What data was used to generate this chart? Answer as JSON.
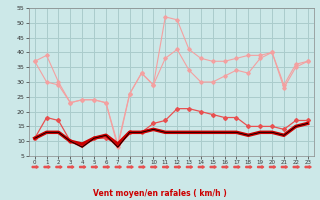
{
  "x": [
    0,
    1,
    2,
    3,
    4,
    5,
    6,
    7,
    8,
    9,
    10,
    11,
    12,
    13,
    14,
    15,
    16,
    17,
    18,
    19,
    20,
    21,
    22,
    23
  ],
  "line_max_gust": [
    37,
    39,
    30,
    23,
    24,
    24,
    23,
    8,
    26,
    33,
    29,
    52,
    51,
    41,
    38,
    37,
    37,
    38,
    39,
    39,
    40,
    29,
    36,
    37
  ],
  "line_avg_gust": [
    37,
    30,
    29,
    23,
    24,
    24,
    23,
    9,
    26,
    33,
    29,
    38,
    41,
    34,
    30,
    30,
    32,
    34,
    33,
    38,
    40,
    28,
    35,
    37
  ],
  "line_avg_wind": [
    11,
    18,
    17,
    10,
    9,
    11,
    11,
    9,
    13,
    13,
    16,
    17,
    21,
    21,
    20,
    19,
    18,
    18,
    15,
    15,
    15,
    14,
    17,
    17
  ],
  "line_base1": [
    11,
    13,
    13,
    10,
    9,
    11,
    12,
    9,
    13,
    13,
    14,
    13,
    13,
    13,
    13,
    13,
    13,
    13,
    12,
    13,
    13,
    12,
    15,
    16
  ],
  "line_base2": [
    11,
    13,
    13,
    10,
    8,
    11,
    12,
    8,
    13,
    13,
    14,
    13,
    13,
    13,
    13,
    13,
    13,
    13,
    12,
    13,
    13,
    12,
    15,
    16
  ],
  "color_light_salmon": "#F4A0A0",
  "color_medium_red": "#E85050",
  "color_dark_red": "#CC0000",
  "color_black": "#000000",
  "bg_color": "#CCE8E8",
  "grid_color": "#AACCCC",
  "xlabel": "Vent moyen/en rafales ( km/h )",
  "ylim": [
    5,
    55
  ],
  "yticks": [
    5,
    10,
    15,
    20,
    25,
    30,
    35,
    40,
    45,
    50,
    55
  ],
  "xticks": [
    0,
    1,
    2,
    3,
    4,
    5,
    6,
    7,
    8,
    9,
    10,
    11,
    12,
    13,
    14,
    15,
    16,
    17,
    18,
    19,
    20,
    21,
    22,
    23
  ]
}
